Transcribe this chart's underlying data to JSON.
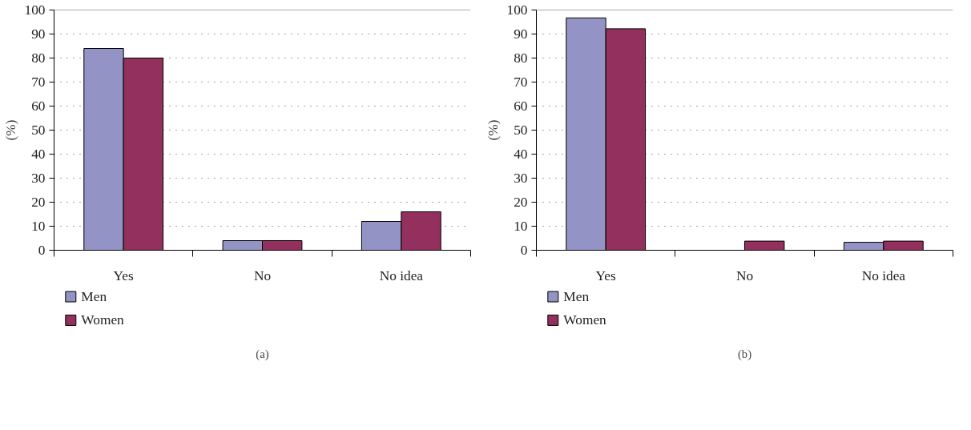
{
  "chart_data": [
    {
      "type": "bar",
      "categories": [
        "Yes",
        "No",
        "No idea"
      ],
      "ylabel": "(%)",
      "ylim": [
        0,
        100
      ],
      "yticks": [
        0,
        10,
        20,
        30,
        40,
        50,
        60,
        70,
        80,
        90,
        100
      ],
      "grid": "y",
      "legend": "bottom left",
      "annotations": [
        "(a)"
      ],
      "series": [
        {
          "name": "Men",
          "color": "#9393c6",
          "values": [
            84,
            4,
            12
          ]
        },
        {
          "name": "Women",
          "color": "#93305d",
          "values": [
            80,
            4,
            16
          ]
        }
      ]
    },
    {
      "type": "bar",
      "categories": [
        "Yes",
        "No",
        "No idea"
      ],
      "ylabel": "(%)",
      "ylim": [
        0,
        100
      ],
      "yticks": [
        0,
        10,
        20,
        30,
        40,
        50,
        60,
        70,
        80,
        90,
        100
      ],
      "grid": "y",
      "legend": "bottom left",
      "annotations": [
        "(b)"
      ],
      "series": [
        {
          "name": "Men",
          "color": "#9393c6",
          "values": [
            96.7,
            0,
            3.3
          ]
        },
        {
          "name": "Women",
          "color": "#93305d",
          "values": [
            92.2,
            3.8,
            3.8
          ]
        }
      ]
    }
  ]
}
